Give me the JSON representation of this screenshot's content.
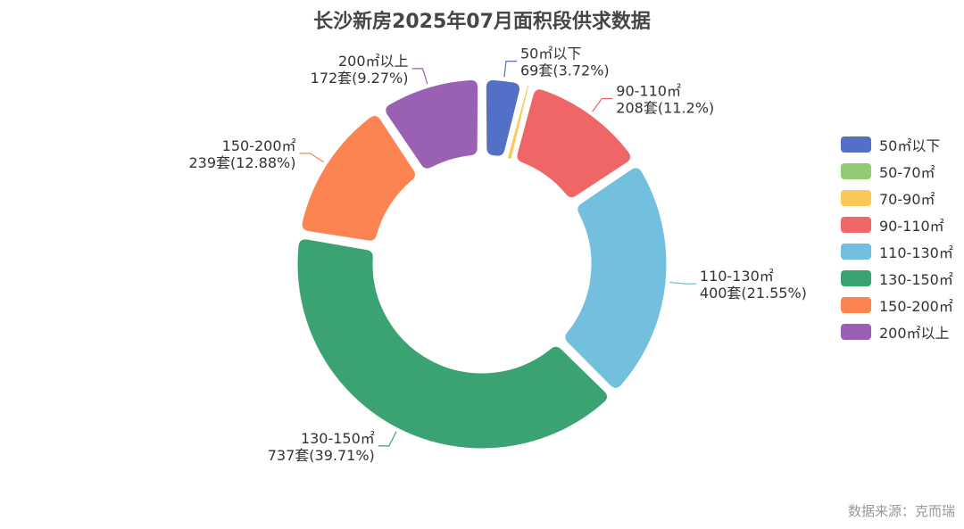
{
  "title": "长沙新房2025年07月面积段供求数据",
  "source": "数据来源：克而瑞",
  "chart_data": {
    "type": "pie",
    "variant": "donut",
    "title": "长沙新房2025年07月面积段供求数据",
    "legend_position": "right",
    "unit": "套",
    "slices": [
      {
        "label": "50㎡以下",
        "value": 69,
        "percent_label": "3.72%",
        "color": "#5470c6"
      },
      {
        "label": "50-70㎡",
        "value": 0,
        "percent_label": "",
        "color": "#91cc75"
      },
      {
        "label": "70-90㎡",
        "value": 10,
        "percent_label": "",
        "color": "#fac858"
      },
      {
        "label": "90-110㎡",
        "value": 208,
        "percent_label": "11.2%",
        "color": "#ee6666"
      },
      {
        "label": "110-130㎡",
        "value": 400,
        "percent_label": "21.55%",
        "color": "#73c0de"
      },
      {
        "label": "130-150㎡",
        "value": 737,
        "percent_label": "39.71%",
        "color": "#3ba272"
      },
      {
        "label": "150-200㎡",
        "value": 239,
        "percent_label": "12.88%",
        "color": "#fc8452"
      },
      {
        "label": "200㎡以上",
        "value": 172,
        "percent_label": "9.27%",
        "color": "#9a60b4"
      }
    ]
  }
}
